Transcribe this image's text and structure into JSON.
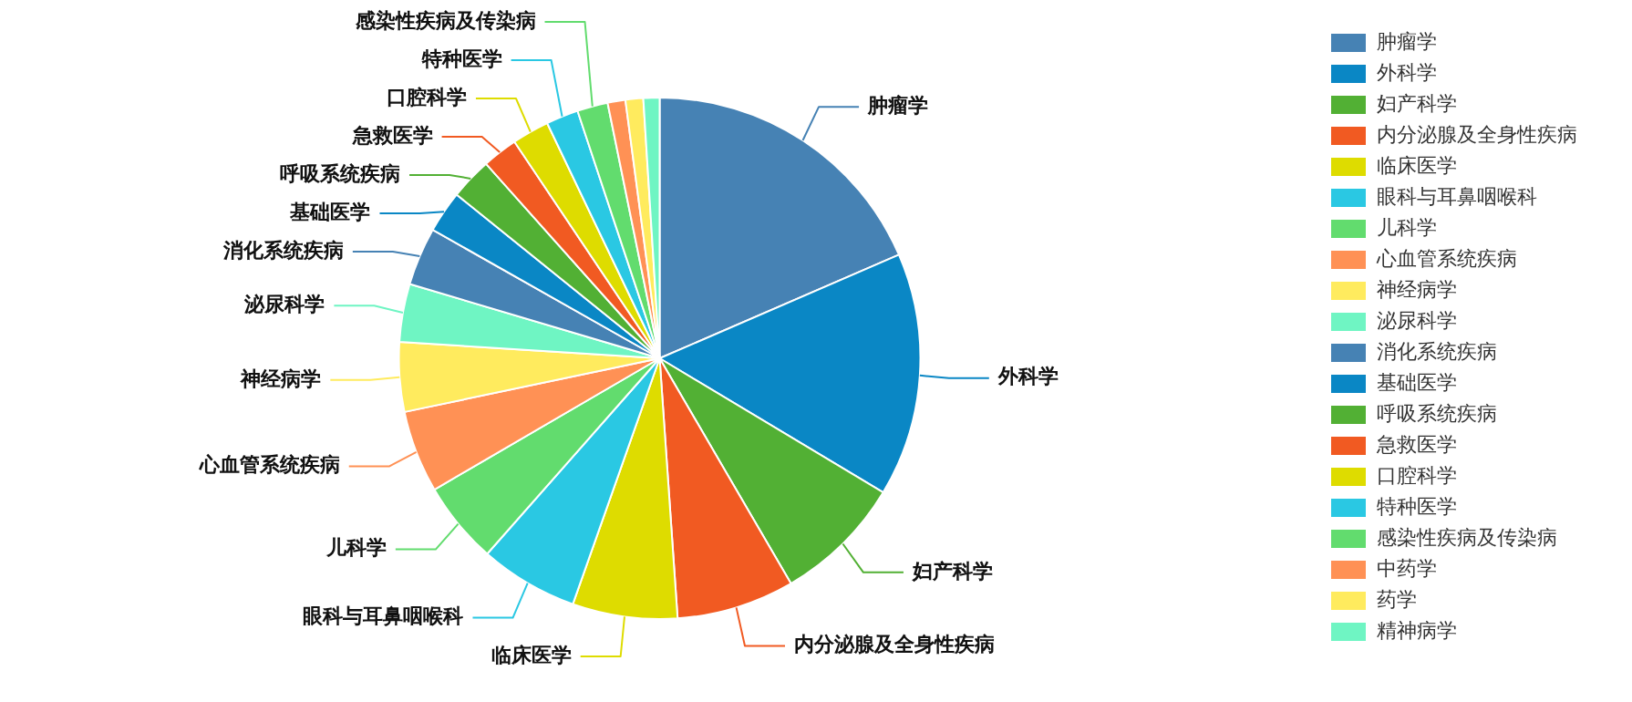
{
  "chart_data": {
    "type": "pie",
    "categories": [
      "肿瘤学",
      "外科学",
      "妇产科学",
      "内分泌腺及全身性疾病",
      "临床医学",
      "眼科与耳鼻咽喉科",
      "儿科学",
      "心血管系统疾病",
      "神经病学",
      "泌尿科学",
      "消化系统疾病",
      "基础医学",
      "呼吸系统疾病",
      "急救医学",
      "口腔科学",
      "特种医学",
      "感染性疾病及传染病",
      "中药学",
      "药学",
      "精神病学"
    ],
    "values": [
      18.5,
      15.1,
      8,
      7.3,
      6.5,
      6.1,
      5.1,
      5.1,
      4.3,
      3.6,
      3.6,
      2.6,
      2.6,
      2.2,
      2.3,
      2,
      1.9,
      1.1,
      1.1,
      1
    ],
    "colors": [
      "#4682b4",
      "#0a87c5",
      "#52b034",
      "#f15a22",
      "#dedc00",
      "#2ac8e3",
      "#62dc6e",
      "#ff9155",
      "#ffeb5e",
      "#6ff5c3",
      "#4682b4",
      "#0a87c5",
      "#52b034",
      "#f15a22",
      "#dedc00",
      "#2ac8e3",
      "#62dc6e",
      "#ff9155",
      "#ffeb5e",
      "#6ff5c3"
    ],
    "legend": "right"
  }
}
